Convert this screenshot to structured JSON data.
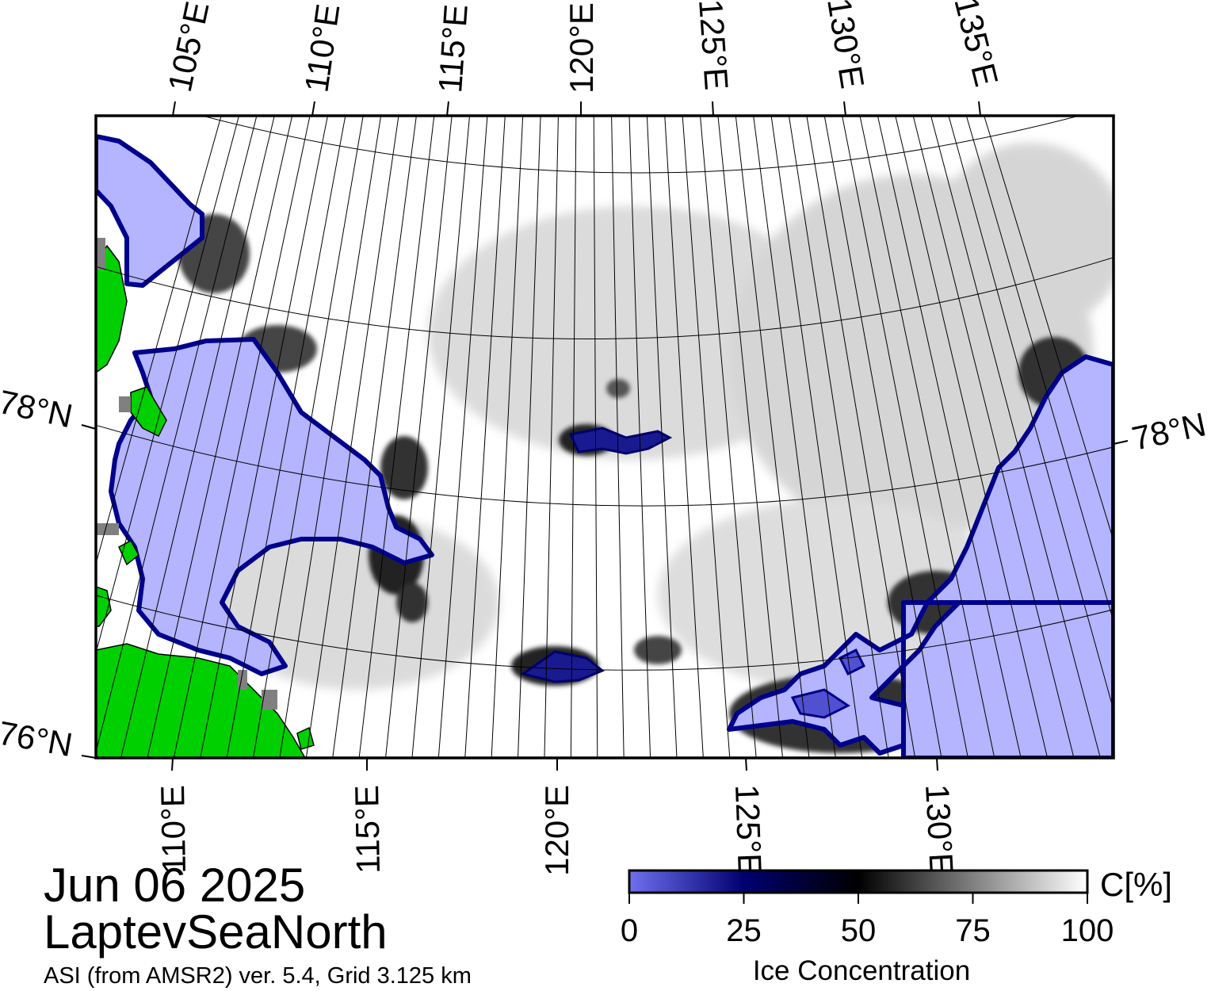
{
  "title": {
    "date": "Jun 06 2025",
    "region": "LaptevSeaNorth",
    "product": "ASI (from AMSR2) ver. 5.4,  Grid 3.125 km"
  },
  "top_lon_labels": [
    "105°E",
    "110°E",
    "115°E",
    "120°E",
    "125°E",
    "130°E",
    "135°E"
  ],
  "bottom_lon_labels": [
    "110°E",
    "115°E",
    "120°E",
    "125°E",
    "130°E"
  ],
  "lat_labels": {
    "left_upper": "78°N",
    "left_lower": "76°N",
    "right": "78°N"
  },
  "colorbar": {
    "unit_label": "C[%]",
    "axis_label": "Ice Concentration",
    "ticks": [
      "0",
      "25",
      "50",
      "75",
      "100"
    ],
    "range": [
      0,
      100
    ],
    "stops": [
      {
        "value": 0,
        "color": "#7070f0"
      },
      {
        "value": 25,
        "color": "#000070"
      },
      {
        "value": 50,
        "color": "#000000"
      },
      {
        "value": 75,
        "color": "#808080"
      },
      {
        "value": 100,
        "color": "#ffffff"
      }
    ]
  },
  "legend_colors": {
    "land": "#00d000",
    "ice_edge_fill": "#b4b4ff",
    "ice_border": "#00008c",
    "land_mask": "#808080",
    "ocean": "#ffffff"
  }
}
